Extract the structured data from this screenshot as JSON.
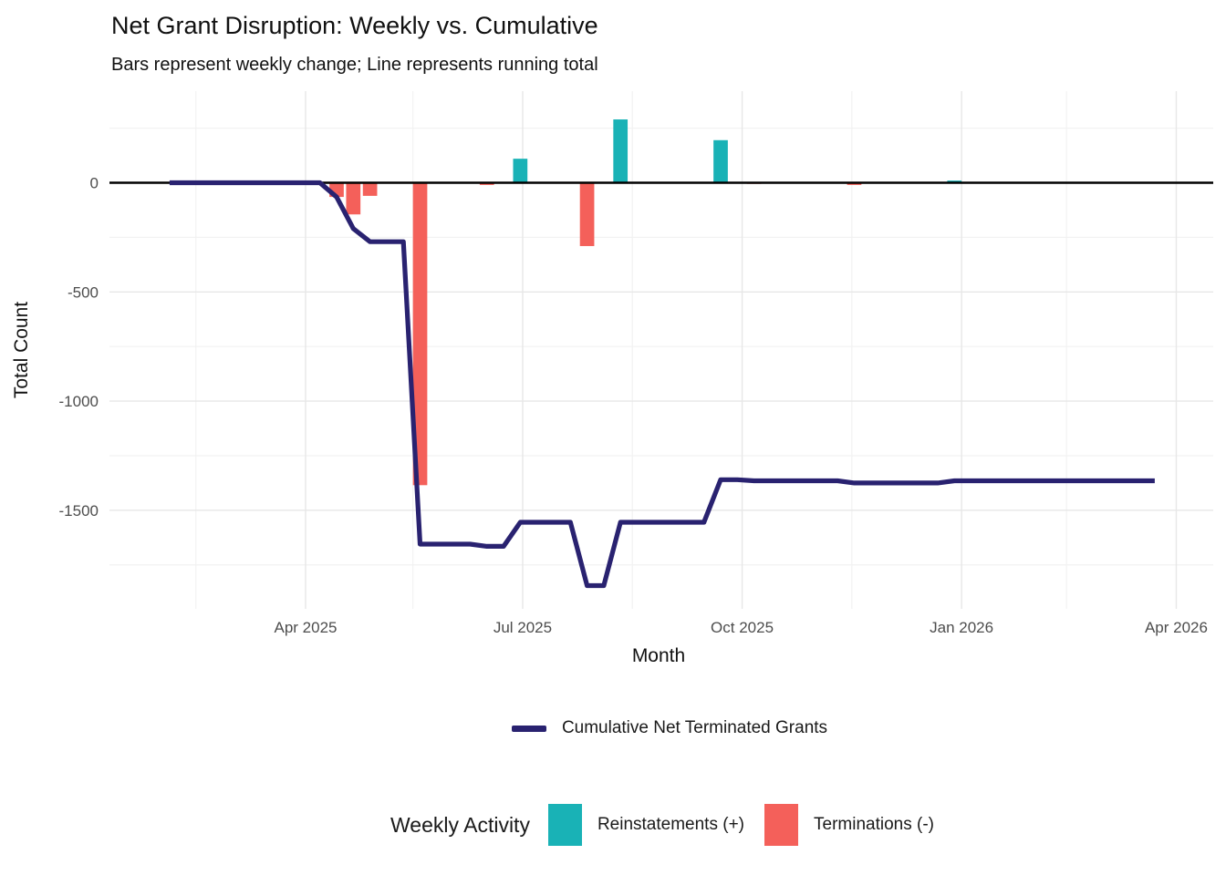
{
  "page": {
    "background": "#FFFFFF"
  },
  "chart_data": {
    "type": "bar+line combo (weekly bars with cumulative line)",
    "title": "Net Grant Disruption: Weekly vs. Cumulative",
    "subtitle": "Bars represent weekly change; Line represents running total",
    "xlabel": "Month",
    "ylabel": "Total Count",
    "x_major_breaks": [
      "2025-04-01",
      "2025-07-01",
      "2025-10-01",
      "2026-01-01",
      "2026-04-01"
    ],
    "x_tick_labels": [
      "Apr 2025",
      "Jul 2025",
      "Oct 2025",
      "Jan 2026",
      "Apr 2026"
    ],
    "x_minor_breaks": [
      "2025-02-14",
      "2025-05-16",
      "2025-08-16",
      "2025-11-16",
      "2026-02-14"
    ],
    "y_major_breaks": [
      0,
      -500,
      -1000,
      -1500
    ],
    "y_tick_labels": [
      "0",
      "-500",
      "-1000",
      "-1500"
    ],
    "y_minor_breaks": [
      250,
      -250,
      -750,
      -1250,
      -1750
    ],
    "ylim": [
      -1950,
      420
    ],
    "x_domain": [
      "2025-01-08",
      "2026-04-16"
    ],
    "grid": "major and minor, light grey, no tick marks",
    "bars": [
      {
        "date": "2025-04-11",
        "value": -65,
        "series": "termination"
      },
      {
        "date": "2025-04-18",
        "value": -145,
        "series": "termination"
      },
      {
        "date": "2025-04-25",
        "value": -60,
        "series": "termination"
      },
      {
        "date": "2025-05-16",
        "value": -1385,
        "series": "termination"
      },
      {
        "date": "2025-06-13",
        "value": -10,
        "series": "termination"
      },
      {
        "date": "2025-06-27",
        "value": 110,
        "series": "reinstatement"
      },
      {
        "date": "2025-07-25",
        "value": -290,
        "series": "termination"
      },
      {
        "date": "2025-08-08",
        "value": 290,
        "series": "reinstatement"
      },
      {
        "date": "2025-09-19",
        "value": 195,
        "series": "reinstatement"
      },
      {
        "date": "2025-10-03",
        "value": -5,
        "series": "termination"
      },
      {
        "date": "2025-11-14",
        "value": -10,
        "series": "termination"
      },
      {
        "date": "2025-12-26",
        "value": 10,
        "series": "reinstatement"
      }
    ],
    "line": {
      "name": "Cumulative Net Terminated Grants",
      "start": "2025-01-31",
      "end": "2026-03-20",
      "interval_days": 7,
      "definition": "running total of weekly bar values, starts at 0",
      "key_levels": {
        "pre_plunge": -270,
        "post_plunge": -1655,
        "mid_dip": -1845,
        "after_recovery": -1555,
        "final": -1365
      }
    },
    "legends": {
      "line_legend": {
        "label": "Cumulative Net Terminated Grants"
      },
      "activity_legend": {
        "title": "Weekly Activity",
        "items": [
          {
            "label": "Reinstatements (+)",
            "series": "reinstatement"
          },
          {
            "label": "Terminations (-)",
            "series": "termination"
          }
        ]
      }
    },
    "colors": {
      "line": "#292270",
      "reinstatement": "#19B2B6",
      "termination": "#F4605A",
      "zero_line": "#000000",
      "grid_major": "#E7E7E7",
      "grid_minor": "#F2F2F2",
      "tick_text": "#4D4D4D",
      "text": "#1A1A1A"
    }
  }
}
